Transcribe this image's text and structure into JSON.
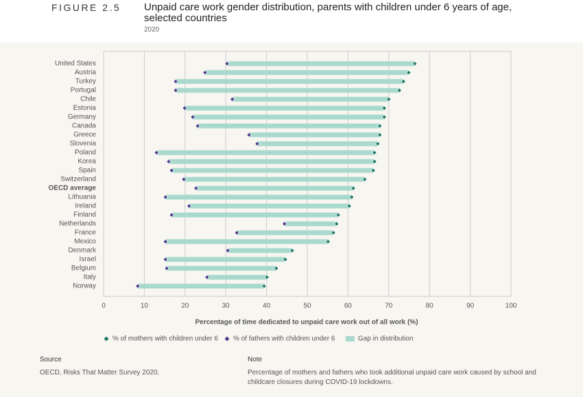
{
  "header": {
    "figure_label": "FIGURE 2.5",
    "title": "Unpaid care work gender distribution, parents with children under 6 years of age, selected countries",
    "subtitle": "2020"
  },
  "chart_data": {
    "type": "dumbbell",
    "categories": [
      "United States",
      "Austria",
      "Turkey",
      "Portugal",
      "Chile",
      "Estonia",
      "Germany",
      "Canada",
      "Greece",
      "Slovenia",
      "Poland",
      "Korea",
      "Spain",
      "Switzerland",
      "OECD average",
      "Lithuania",
      "Ireland",
      "Finland",
      "Netherlands",
      "France",
      "Mexico",
      "Denmark",
      "Israel",
      "Belgium",
      "Italy",
      "Norway"
    ],
    "highlight": "OECD average",
    "series": [
      {
        "name": "% of mothers with children under 6",
        "color": "#1f7a68",
        "values": [
          76.4,
          74.9,
          73.6,
          72.6,
          70.0,
          68.9,
          68.9,
          67.8,
          67.8,
          67.3,
          66.5,
          66.5,
          66.2,
          64.1,
          61.3,
          60.9,
          60.3,
          57.6,
          57.2,
          56.4,
          55.1,
          46.3,
          44.6,
          42.4,
          40.1,
          39.4
        ]
      },
      {
        "name": "% of fathers with children under 6",
        "color": "#4a3d8a",
        "values": [
          30.3,
          24.9,
          17.7,
          17.7,
          31.6,
          19.9,
          21.9,
          23.1,
          35.7,
          37.7,
          13.0,
          16.0,
          16.7,
          19.7,
          22.7,
          15.2,
          21.0,
          16.7,
          44.4,
          32.7,
          15.2,
          30.5,
          15.2,
          15.5,
          25.4,
          8.4
        ]
      }
    ],
    "gap": {
      "name": "Gap in distribution",
      "color": "#a9d9cd"
    },
    "xlim": [
      0,
      100
    ],
    "xticks": [
      0,
      10,
      20,
      30,
      40,
      50,
      60,
      70,
      80,
      90,
      100
    ],
    "grid": true,
    "xlabel": "Percentage of time dedicated to unpaid care work out of all work (%)"
  },
  "footer": {
    "source_title": "Source",
    "source": "OECD, Risks That Matter Survey 2020.",
    "note_title": "Note",
    "note": "Percentage of mothers and fathers who took additional unpaid care work caused by school and childcare closures during COVID-19 lockdowns."
  }
}
